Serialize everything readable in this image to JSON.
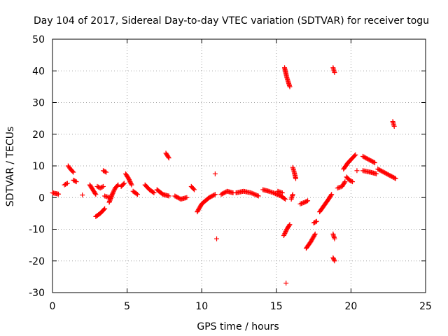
{
  "chart_data": {
    "type": "scatter",
    "title": "Day 104 of 2017, Sidereal Day-to-day VTEC variation (SDTVAR) for receiver togu",
    "xlabel": "GPS time / hours",
    "ylabel": "SDTVAR / TECUs",
    "xlim": [
      0,
      25
    ],
    "ylim": [
      -30,
      50
    ],
    "xticks": [
      0,
      5,
      10,
      15,
      20,
      25
    ],
    "yticks": [
      -30,
      -20,
      -10,
      0,
      10,
      20,
      30,
      40,
      50
    ],
    "grid": true,
    "marker": "+",
    "color": "#ff0000",
    "series": [
      {
        "name": "SDTVAR",
        "segments": [
          [
            [
              0.0,
              1.5
            ],
            [
              0.2,
              1.3
            ],
            [
              0.4,
              1.1
            ]
          ],
          [
            [
              0.8,
              4.0
            ],
            [
              1.0,
              4.5
            ]
          ],
          [
            [
              1.05,
              10.0
            ],
            [
              1.2,
              9.0
            ],
            [
              1.4,
              8.0
            ]
          ],
          [
            [
              1.4,
              5.5
            ],
            [
              1.6,
              5.0
            ]
          ],
          [
            [
              2.0,
              0.8
            ]
          ],
          [
            [
              2.5,
              4.0
            ],
            [
              2.7,
              2.5
            ],
            [
              2.9,
              1.0
            ]
          ],
          [
            [
              2.9,
              -6.0
            ],
            [
              3.2,
              -5.0
            ],
            [
              3.5,
              -3.5
            ]
          ],
          [
            [
              3.0,
              3.5
            ],
            [
              3.2,
              3.0
            ],
            [
              3.4,
              3.5
            ]
          ],
          [
            [
              3.4,
              8.5
            ],
            [
              3.6,
              8.0
            ]
          ],
          [
            [
              3.5,
              0.5
            ],
            [
              3.8,
              0.0
            ]
          ],
          [
            [
              3.8,
              -1.5
            ],
            [
              4.0,
              1.0
            ],
            [
              4.2,
              3.0
            ],
            [
              4.4,
              4.0
            ]
          ],
          [
            [
              4.6,
              3.5
            ],
            [
              4.8,
              4.5
            ]
          ],
          [
            [
              4.9,
              7.5
            ],
            [
              5.1,
              6.0
            ],
            [
              5.3,
              4.0
            ]
          ],
          [
            [
              5.4,
              2.0
            ],
            [
              5.7,
              1.0
            ]
          ],
          [
            [
              6.2,
              4.0
            ],
            [
              6.5,
              2.5
            ],
            [
              6.8,
              1.5
            ]
          ],
          [
            [
              7.0,
              2.5
            ],
            [
              7.4,
              1.0
            ],
            [
              7.8,
              0.5
            ]
          ],
          [
            [
              7.6,
              14.0
            ],
            [
              7.8,
              12.5
            ]
          ],
          [
            [
              8.2,
              0.5
            ],
            [
              8.6,
              -0.5
            ],
            [
              9.0,
              0.0
            ]
          ],
          [
            [
              9.3,
              3.5
            ],
            [
              9.5,
              2.5
            ]
          ],
          [
            [
              9.7,
              -4.5
            ],
            [
              10.0,
              -2.0
            ],
            [
              10.5,
              0.0
            ],
            [
              10.9,
              1.0
            ]
          ],
          [
            [
              10.9,
              7.5
            ]
          ],
          [
            [
              11.0,
              -13.0
            ]
          ],
          [
            [
              11.3,
              1.0
            ],
            [
              11.7,
              2.0
            ],
            [
              12.1,
              1.5
            ]
          ],
          [
            [
              12.3,
              1.5
            ],
            [
              12.8,
              2.0
            ],
            [
              13.3,
              1.5
            ],
            [
              13.8,
              0.5
            ]
          ],
          [
            [
              14.1,
              2.5
            ],
            [
              14.5,
              2.0
            ],
            [
              14.8,
              1.5
            ],
            [
              15.3,
              0.5
            ],
            [
              15.6,
              -0.5
            ]
          ],
          [
            [
              15.1,
              2.0
            ],
            [
              15.4,
              1.5
            ]
          ],
          [
            [
              15.55,
              41.0
            ],
            [
              15.7,
              38.0
            ],
            [
              15.9,
              35.0
            ]
          ],
          [
            [
              15.5,
              -12.0
            ],
            [
              15.7,
              -10.0
            ],
            [
              15.9,
              -8.5
            ]
          ],
          [
            [
              15.65,
              -27.0
            ]
          ],
          [
            [
              16.0,
              -0.5
            ],
            [
              16.1,
              1.0
            ]
          ],
          [
            [
              16.1,
              9.5
            ],
            [
              16.2,
              8.0
            ],
            [
              16.3,
              6.0
            ]
          ],
          [
            [
              16.6,
              -2.0
            ],
            [
              16.9,
              -1.5
            ],
            [
              17.1,
              -1.0
            ]
          ],
          [
            [
              17.0,
              -16.0
            ],
            [
              17.3,
              -14.0
            ],
            [
              17.6,
              -11.5
            ]
          ],
          [
            [
              17.5,
              -8.0
            ],
            [
              17.7,
              -7.5
            ]
          ],
          [
            [
              17.9,
              -4.5
            ],
            [
              18.2,
              -2.5
            ],
            [
              18.5,
              -0.5
            ],
            [
              18.7,
              1.0
            ]
          ],
          [
            [
              18.8,
              41.0
            ],
            [
              18.9,
              39.5
            ]
          ],
          [
            [
              18.8,
              -11.5
            ],
            [
              18.9,
              -13.0
            ]
          ],
          [
            [
              18.8,
              -19.0
            ],
            [
              18.9,
              -20.0
            ]
          ],
          [
            [
              19.1,
              3.0
            ],
            [
              19.4,
              3.5
            ],
            [
              19.6,
              5.0
            ]
          ],
          [
            [
              19.5,
              9.0
            ],
            [
              19.8,
              11.0
            ],
            [
              20.1,
              12.5
            ],
            [
              20.3,
              13.5
            ]
          ],
          [
            [
              19.7,
              6.5
            ],
            [
              19.9,
              5.5
            ],
            [
              20.1,
              5.0
            ]
          ],
          [
            [
              20.4,
              8.5
            ]
          ],
          [
            [
              20.8,
              13.0
            ],
            [
              21.2,
              12.0
            ],
            [
              21.6,
              11.0
            ]
          ],
          [
            [
              20.8,
              8.5
            ],
            [
              21.3,
              8.0
            ],
            [
              21.7,
              7.5
            ]
          ],
          [
            [
              21.8,
              9.0
            ],
            [
              22.2,
              8.0
            ],
            [
              22.6,
              7.0
            ],
            [
              23.0,
              6.0
            ]
          ],
          [
            [
              22.8,
              24.0
            ],
            [
              22.9,
              22.5
            ]
          ]
        ]
      }
    ]
  }
}
